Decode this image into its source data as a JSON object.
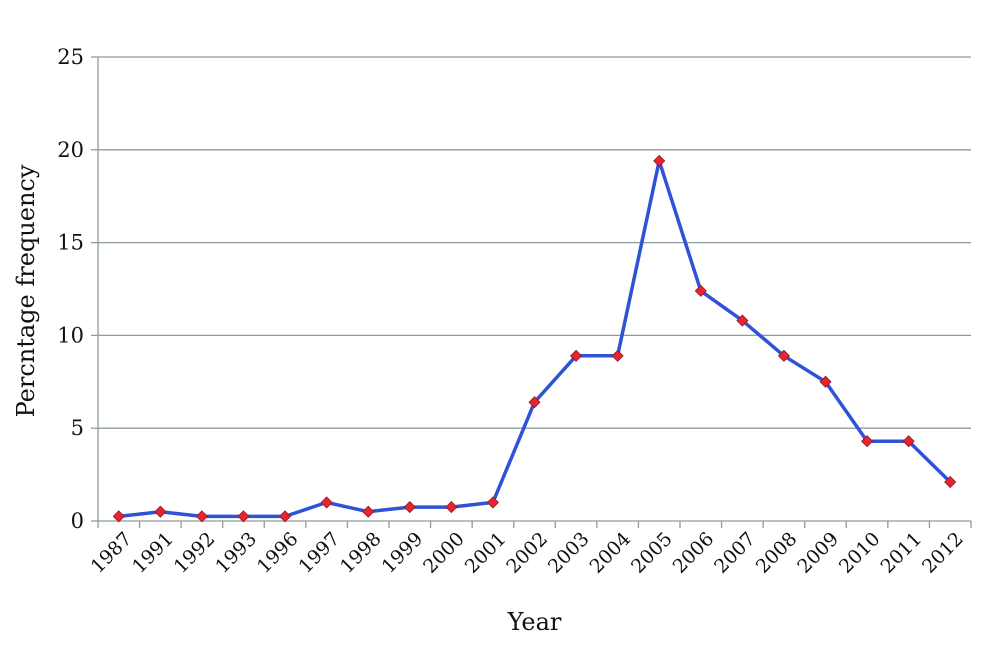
{
  "chart_data": {
    "type": "line",
    "title": "",
    "xlabel": "Year",
    "ylabel": "Percntage frequency",
    "categories": [
      "1987",
      "1991",
      "1992",
      "1993",
      "1996",
      "1997",
      "1998",
      "1999",
      "2000",
      "2001",
      "2002",
      "2003",
      "2004",
      "2005",
      "2006",
      "2007",
      "2008",
      "2009",
      "2010",
      "2011",
      "2012"
    ],
    "series": [
      {
        "values": [
          0.25,
          0.5,
          0.25,
          0.25,
          0.25,
          1.0,
          0.5,
          0.75,
          0.75,
          1.0,
          6.4,
          8.9,
          8.9,
          19.4,
          12.4,
          10.8,
          8.9,
          7.5,
          4.3,
          4.3,
          2.1
        ],
        "color": "#2f52d6",
        "marker": "diamond",
        "marker_color": "#e8242e"
      }
    ],
    "ylim": [
      0,
      25
    ],
    "yticks": [
      0,
      5,
      10,
      15,
      20,
      25
    ],
    "grid": true,
    "legend": "none"
  }
}
